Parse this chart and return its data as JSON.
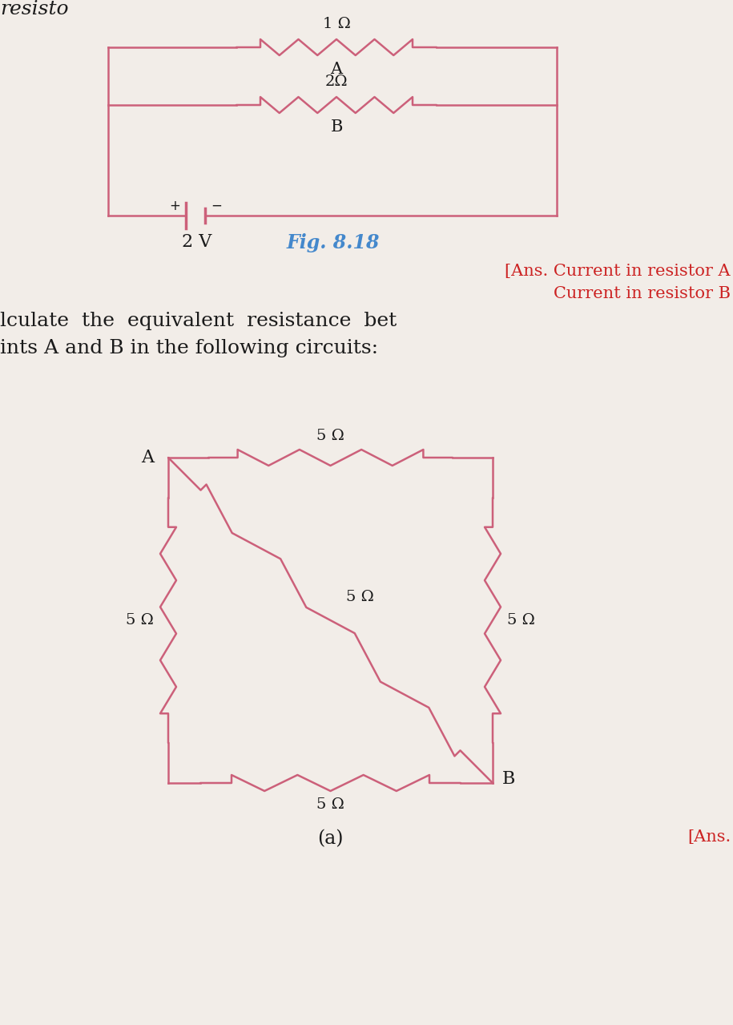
{
  "bg_color": "#f2ede8",
  "circuit_color": "#cc607a",
  "text_color_dark": "#1a1a1a",
  "text_color_blue": "#4488cc",
  "text_color_red": "#cc2222",
  "fig_label": "Fig. 8.18",
  "ans_line1": "[Ans. Current in resistor A",
  "ans_line2": "Current in resistor B",
  "body_line1": "lculate  the  equivalent  resistance  bet",
  "body_line2": "ints A and B in the following circuits:",
  "sub_label": "(a)",
  "ans_bottom": "[Ans.",
  "resistor_top_label": "1 Ω",
  "resistor_A_label": "A",
  "resistor_B_value": "2Ω",
  "resistor_B_label": "B",
  "resistor_left": "5 Ω",
  "resistor_top2": "5 Ω",
  "resistor_diag": "5 Ω",
  "resistor_right": "5 Ω",
  "resistor_bottom2": "5 Ω",
  "point_A": "A",
  "point_B": "B",
  "partial_top": "resisto"
}
